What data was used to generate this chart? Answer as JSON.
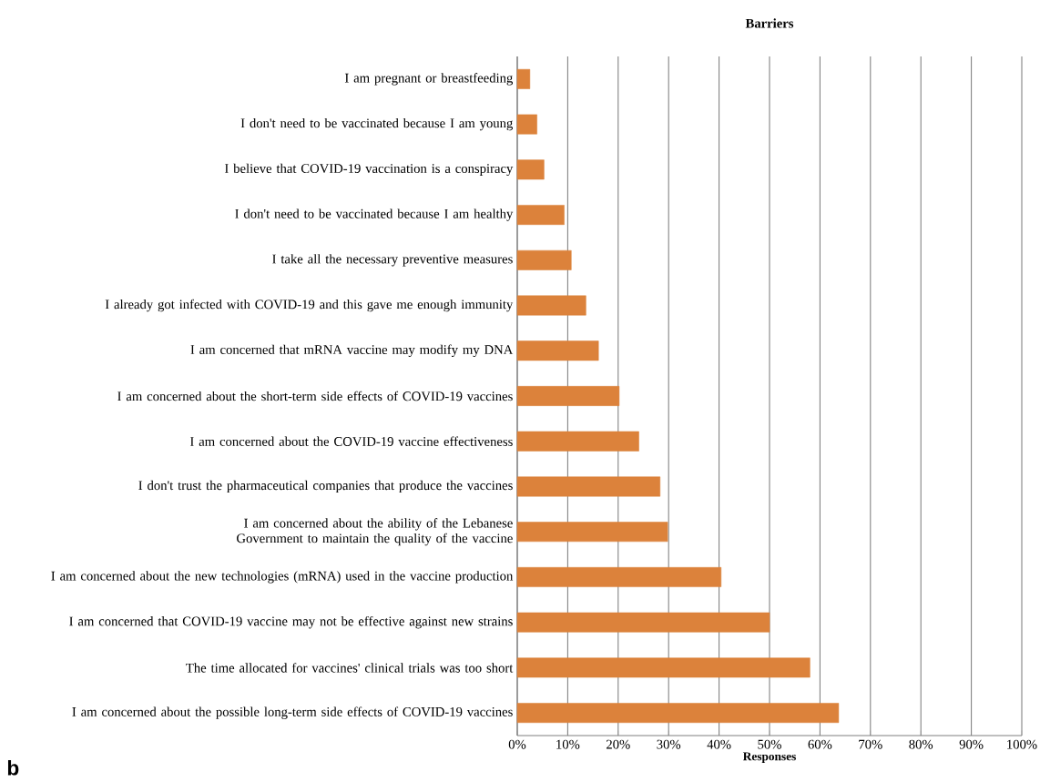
{
  "chart_data": {
    "type": "bar",
    "orientation": "horizontal",
    "title": "Barriers",
    "xlabel": "Responses",
    "categories": [
      "I am pregnant or breastfeeding",
      "I don't need to be vaccinated because I am young",
      "I believe that COVID-19 vaccination is a conspiracy",
      "I don't need to be vaccinated because I am healthy",
      "I take all the necessary preventive measures",
      "I already got infected with COVID-19 and this gave me enough immunity",
      "I am concerned that mRNA vaccine may modify my DNA",
      "I am concerned about the short-term side effects of COVID-19 vaccines",
      "I am concerned about the COVID-19 vaccine effectiveness",
      "I don't trust the pharmaceutical companies that produce the vaccines",
      "I am concerned about the ability of the Lebanese Government to maintain the quality of the vaccine",
      "I am concerned about the new technologies (mRNA) used in the vaccine production",
      "I am concerned that COVID-19 vaccine may not be effective against new strains",
      "The time allocated for vaccines' clinical trials was too short",
      "I am concerned about the possible long-term side effects of COVID-19 vaccines"
    ],
    "values": [
      2.5,
      3.9,
      5.3,
      9.3,
      10.7,
      13.6,
      16.1,
      20.2,
      24.1,
      28.3,
      29.8,
      40.4,
      50.0,
      58.0,
      63.7
    ],
    "color": "#dc823b",
    "xlim": [
      0,
      100
    ],
    "xticks": [
      {
        "value": 0,
        "label": "0%"
      },
      {
        "value": 10,
        "label": "10%"
      },
      {
        "value": 20,
        "label": "20%"
      },
      {
        "value": 30,
        "label": "30%"
      },
      {
        "value": 40,
        "label": "40%"
      },
      {
        "value": 50,
        "label": "50%"
      },
      {
        "value": 60,
        "label": "60%"
      },
      {
        "value": 70,
        "label": "70%"
      },
      {
        "value": 80,
        "label": "80%"
      },
      {
        "value": 90,
        "label": "90%"
      },
      {
        "value": 100,
        "label": "100%"
      }
    ],
    "grid": "x",
    "annotations": [
      "b"
    ]
  }
}
